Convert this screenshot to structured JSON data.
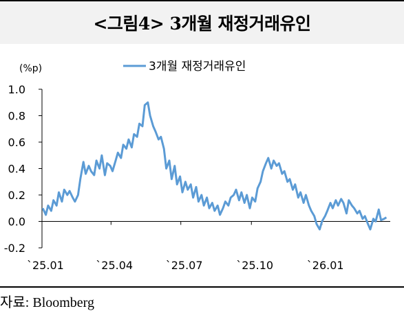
{
  "title": "<그림4> 3개월 재정거래유인",
  "source": "자료: Bloomberg",
  "chart_data": {
    "type": "line",
    "unit_label": "(%p)",
    "ylim": [
      -0.2,
      1.0
    ],
    "y_ticks": [
      "1.0",
      "0.8",
      "0.6",
      "0.4",
      "0.2",
      "0.0",
      "-0.2"
    ],
    "x_tick_labels": [
      "`25.01",
      "`25.04",
      "`25.07",
      "`25.10",
      "`26.01"
    ],
    "legend_position": "top-center",
    "grid": false,
    "series": [
      {
        "name": "3개월 재정거래유인",
        "color": "#5b9bd5",
        "x": [
          "2025-01-02",
          "2025-01-06",
          "2025-01-09",
          "2025-01-13",
          "2025-01-16",
          "2025-01-20",
          "2025-01-23",
          "2025-01-27",
          "2025-01-30",
          "2025-02-03",
          "2025-02-06",
          "2025-02-10",
          "2025-02-13",
          "2025-02-17",
          "2025-02-20",
          "2025-02-24",
          "2025-02-27",
          "2025-03-03",
          "2025-03-06",
          "2025-03-10",
          "2025-03-13",
          "2025-03-17",
          "2025-03-20",
          "2025-03-24",
          "2025-03-27",
          "2025-03-31",
          "2025-04-03",
          "2025-04-07",
          "2025-04-10",
          "2025-04-14",
          "2025-04-17",
          "2025-04-21",
          "2025-04-24",
          "2025-04-28",
          "2025-05-01",
          "2025-05-05",
          "2025-05-08",
          "2025-05-12",
          "2025-05-15",
          "2025-05-19",
          "2025-05-22",
          "2025-05-26",
          "2025-05-29",
          "2025-06-02",
          "2025-06-05",
          "2025-06-09",
          "2025-06-12",
          "2025-06-16",
          "2025-06-19",
          "2025-06-23",
          "2025-06-26",
          "2025-06-30",
          "2025-07-03",
          "2025-07-07",
          "2025-07-10",
          "2025-07-14",
          "2025-07-17",
          "2025-07-21",
          "2025-07-24",
          "2025-07-28",
          "2025-07-31",
          "2025-08-04",
          "2025-08-07",
          "2025-08-11",
          "2025-08-14",
          "2025-08-18",
          "2025-08-21",
          "2025-08-25",
          "2025-08-28",
          "2025-09-01",
          "2025-09-04",
          "2025-09-08",
          "2025-09-11",
          "2025-09-15",
          "2025-09-18",
          "2025-09-22",
          "2025-09-25",
          "2025-09-29",
          "2025-10-02",
          "2025-10-06",
          "2025-10-09",
          "2025-10-13",
          "2025-10-16",
          "2025-10-20",
          "2025-10-23",
          "2025-10-27",
          "2025-10-30",
          "2025-11-03",
          "2025-11-06",
          "2025-11-10",
          "2025-11-13",
          "2025-11-17",
          "2025-11-20",
          "2025-11-24",
          "2025-11-27",
          "2025-12-01",
          "2025-12-04",
          "2025-12-08",
          "2025-12-11",
          "2025-12-15",
          "2025-12-18",
          "2025-12-22",
          "2025-12-25",
          "2025-12-29",
          "2026-01-01",
          "2026-01-05",
          "2026-01-08",
          "2026-01-12",
          "2026-01-15",
          "2026-01-19",
          "2026-01-22",
          "2026-01-26",
          "2026-01-29",
          "2026-02-02",
          "2026-02-05",
          "2026-02-09",
          "2026-02-12",
          "2026-02-16",
          "2026-02-19",
          "2026-02-23",
          "2026-02-26",
          "2026-03-02",
          "2026-03-05",
          "2026-03-09",
          "2026-03-12",
          "2026-03-16",
          "2026-03-19",
          "2026-03-23",
          "2026-03-26"
        ],
        "values": [
          0.1,
          0.05,
          0.12,
          0.08,
          0.16,
          0.12,
          0.22,
          0.15,
          0.24,
          0.2,
          0.23,
          0.18,
          0.15,
          0.2,
          0.32,
          0.45,
          0.36,
          0.42,
          0.38,
          0.35,
          0.46,
          0.4,
          0.5,
          0.35,
          0.44,
          0.42,
          0.38,
          0.46,
          0.52,
          0.48,
          0.58,
          0.55,
          0.62,
          0.56,
          0.66,
          0.64,
          0.74,
          0.72,
          0.88,
          0.9,
          0.8,
          0.72,
          0.68,
          0.62,
          0.64,
          0.55,
          0.4,
          0.46,
          0.32,
          0.42,
          0.28,
          0.34,
          0.22,
          0.3,
          0.24,
          0.28,
          0.18,
          0.26,
          0.15,
          0.2,
          0.12,
          0.18,
          0.1,
          0.14,
          0.08,
          0.12,
          0.05,
          0.1,
          0.15,
          0.12,
          0.18,
          0.2,
          0.24,
          0.16,
          0.22,
          0.14,
          0.2,
          0.1,
          0.18,
          0.15,
          0.25,
          0.3,
          0.38,
          0.44,
          0.48,
          0.4,
          0.46,
          0.42,
          0.44,
          0.36,
          0.38,
          0.3,
          0.32,
          0.24,
          0.28,
          0.18,
          0.22,
          0.14,
          0.2,
          0.12,
          0.08,
          0.04,
          -0.02,
          -0.06,
          0.0,
          0.04,
          0.08,
          0.14,
          0.1,
          0.16,
          0.12,
          0.17,
          0.14,
          0.06,
          0.16,
          0.12,
          0.1,
          0.06,
          0.08,
          0.02,
          0.04,
          -0.02,
          -0.06,
          0.02,
          0.0,
          0.09,
          0.01,
          0.02,
          0.03
        ],
        "values_comment": null
      }
    ]
  }
}
